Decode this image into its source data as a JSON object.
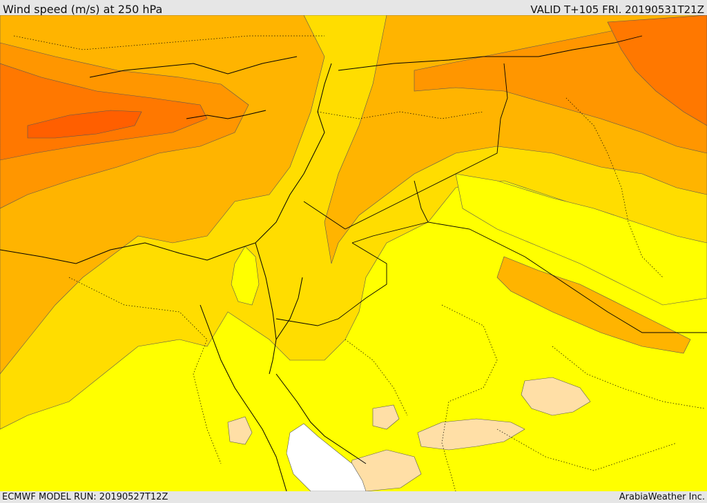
{
  "header": {
    "title": "Wind speed (m/s) at 250 hPa",
    "valid": "VALID T+105 FRI. 20190531T21Z"
  },
  "footer": {
    "model_run": "ECMWF MODEL RUN: 20190527T12Z",
    "credit": "ArabiaWeather Inc."
  },
  "map": {
    "fill_colors": {
      "very_low": "#ffffff",
      "low": "#ffdfa6",
      "moderate": "#ffff00",
      "elevated": "#ffdd00",
      "high": "#ffb400",
      "very_high": "#ff9600",
      "strong": "#ff7800",
      "very_strong": "#ff5f00"
    },
    "contour_color": "#555555",
    "border_color": "#000000"
  }
}
